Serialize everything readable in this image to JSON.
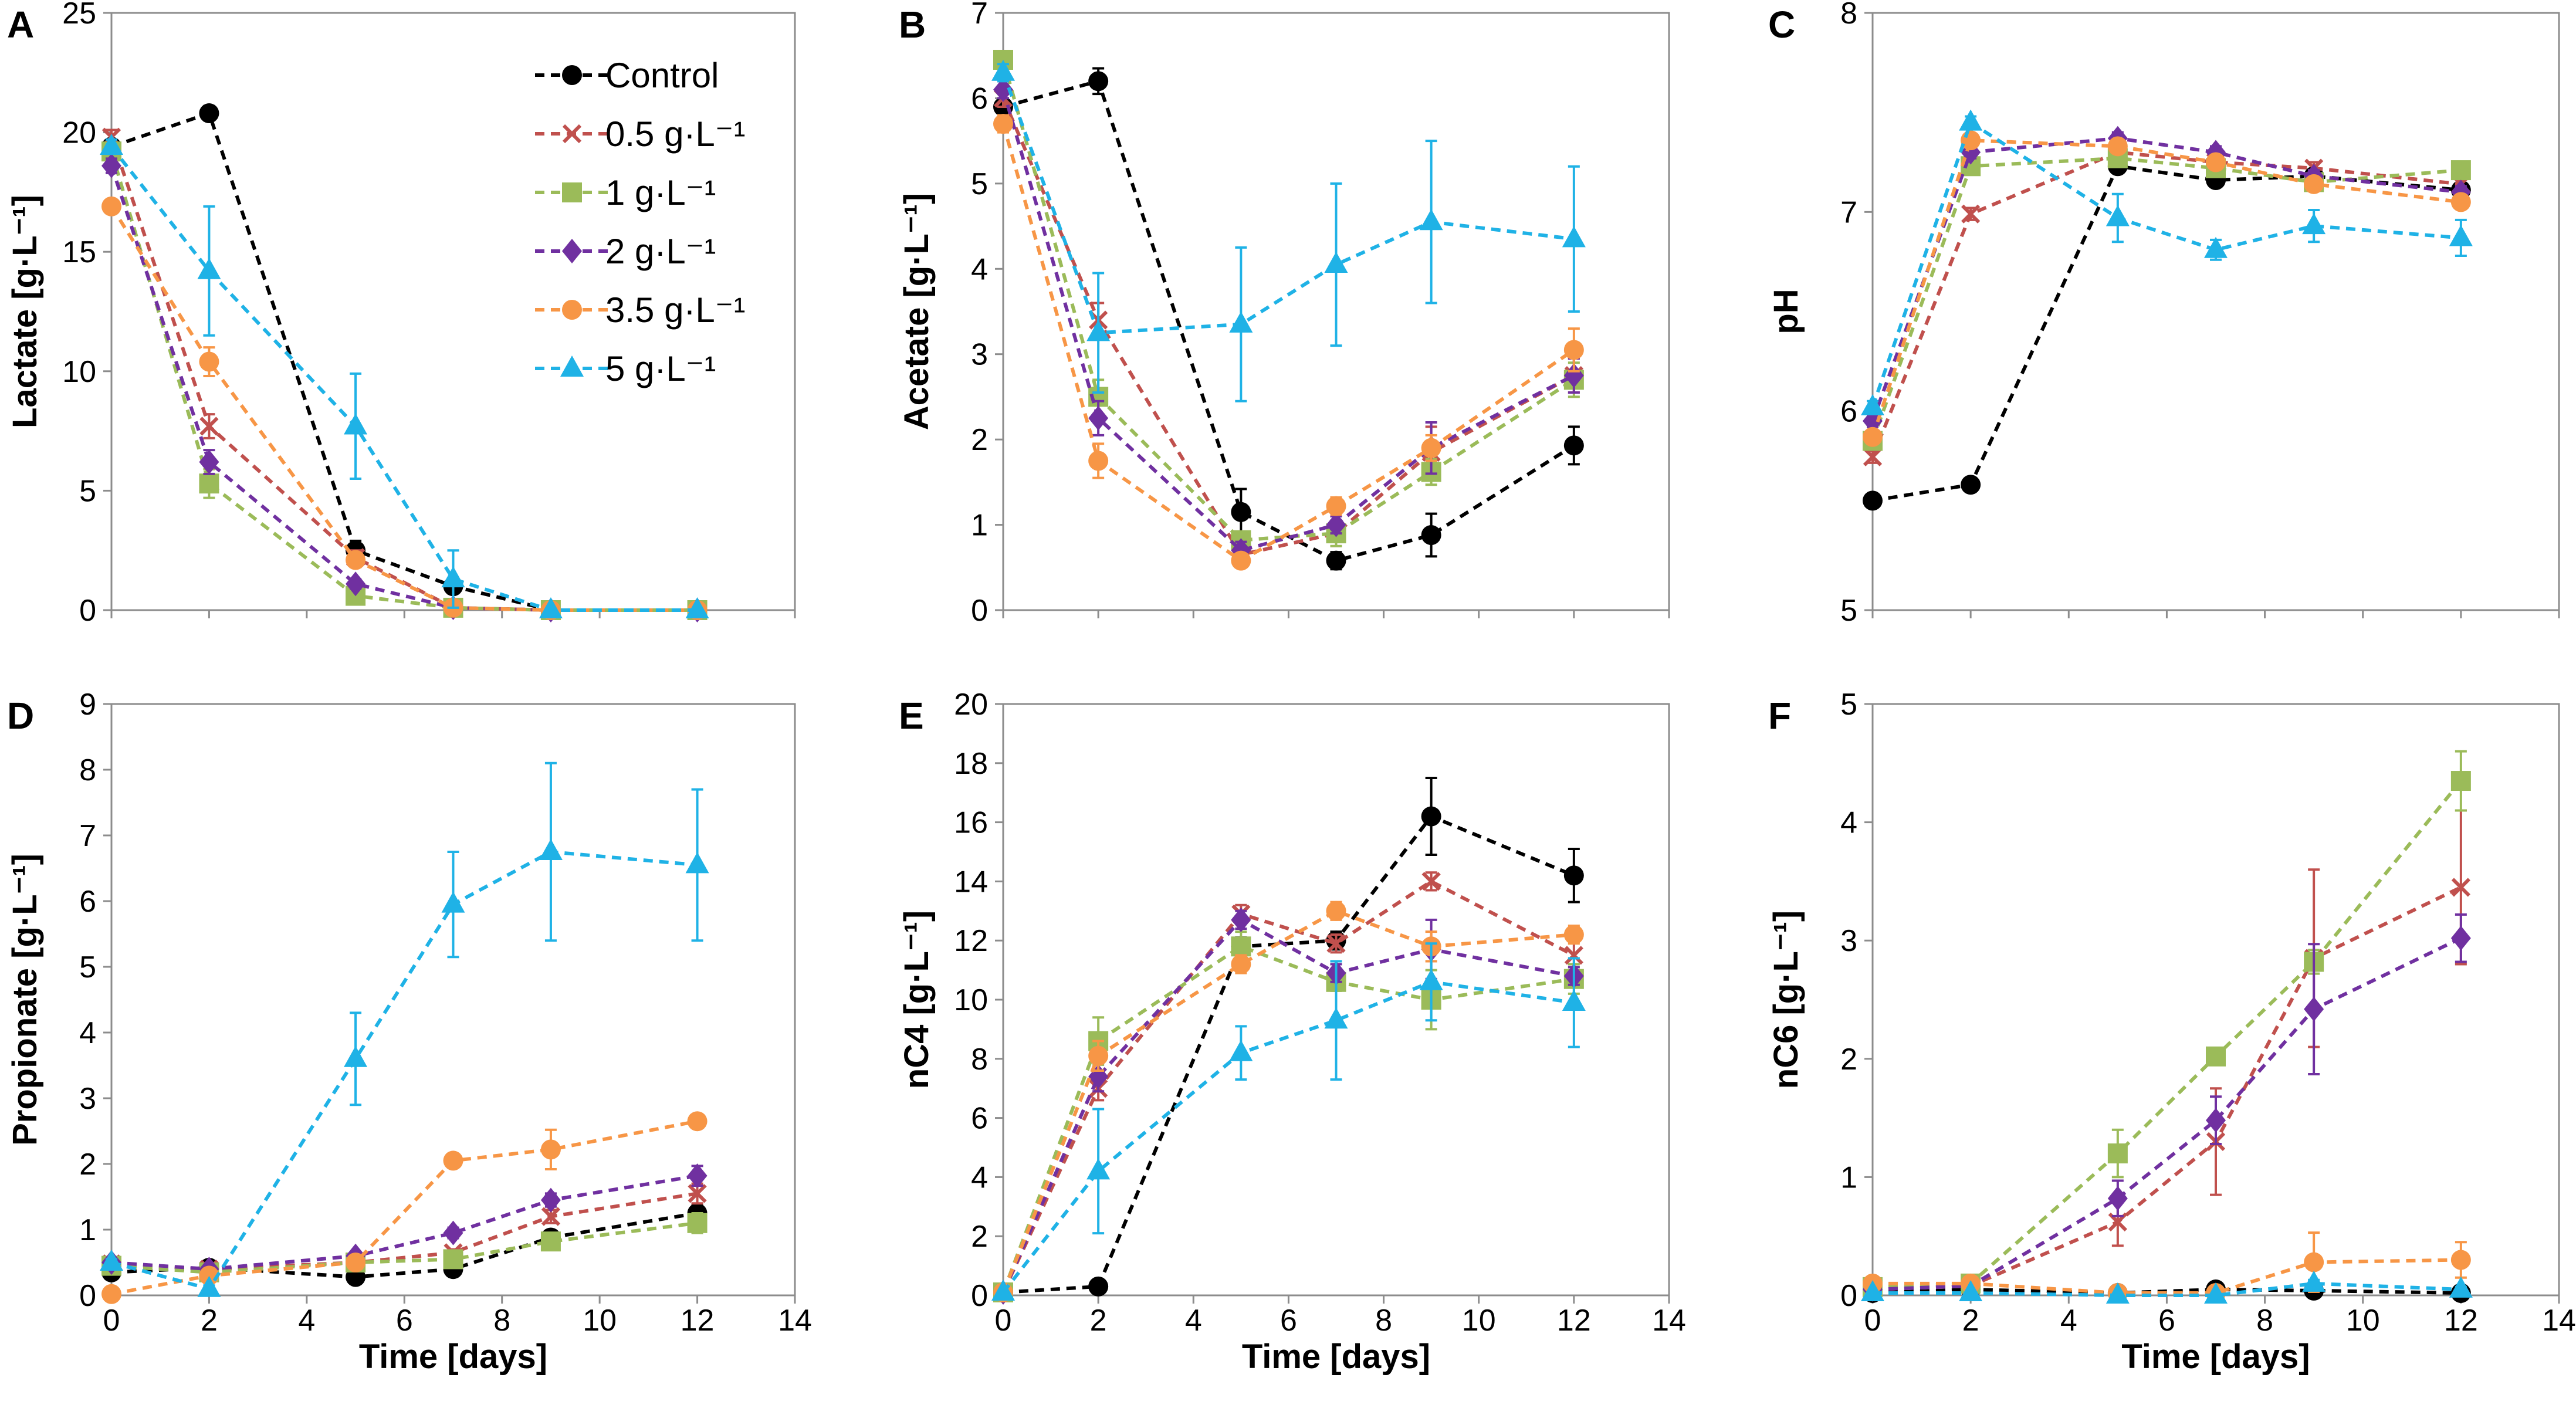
{
  "figure": {
    "x_title": "Time [days]"
  },
  "legend": [
    {
      "key": "control",
      "label": "Control",
      "color": "#000000",
      "marker": "circle"
    },
    {
      "key": "d05",
      "label": "0.5 g·L⁻¹",
      "color": "#c0504d",
      "marker": "x"
    },
    {
      "key": "d1",
      "label": "1 g·L⁻¹",
      "color": "#9bbb59",
      "marker": "square"
    },
    {
      "key": "d2",
      "label": "2 g·L⁻¹",
      "color": "#7030a0",
      "marker": "diamond"
    },
    {
      "key": "d35",
      "label": "3.5 g·L⁻¹",
      "color": "#f79646",
      "marker": "circle"
    },
    {
      "key": "d5",
      "label": "5 g·L⁻¹",
      "color": "#1fb2e6",
      "marker": "triangle"
    }
  ],
  "chart_data": [
    {
      "panel": "A",
      "type": "line",
      "ylabel": "Lactate [g·L⁻¹]",
      "xlabel": "",
      "xlim": [
        0,
        14
      ],
      "ylim": [
        0,
        25
      ],
      "xticks": [],
      "yticks": [
        0,
        5,
        10,
        15,
        20,
        25
      ],
      "x": [
        0,
        2,
        5,
        7,
        9,
        12
      ],
      "series": [
        {
          "key": "control",
          "values": [
            19.4,
            20.8,
            2.5,
            1.0,
            0.0,
            0.0
          ],
          "err": [
            0.3,
            0.3,
            0.4,
            0.3,
            0,
            0
          ]
        },
        {
          "key": "d05",
          "values": [
            19.8,
            7.7,
            2.2,
            0.1,
            0.0,
            0.0
          ],
          "err": [
            0.3,
            0.5,
            0.3,
            0,
            0,
            0
          ]
        },
        {
          "key": "d1",
          "values": [
            19.2,
            5.3,
            0.6,
            0.1,
            0.0,
            0.0
          ],
          "err": [
            0.3,
            0.6,
            0.2,
            0,
            0,
            0
          ]
        },
        {
          "key": "d2",
          "values": [
            18.6,
            6.2,
            1.1,
            0.1,
            0.0,
            0.0
          ],
          "err": [
            0.3,
            0.5,
            0.2,
            0,
            0,
            0
          ]
        },
        {
          "key": "d35",
          "values": [
            16.9,
            10.4,
            2.1,
            0.1,
            0.0,
            0.0
          ],
          "err": [
            0.3,
            0.6,
            0.3,
            0,
            0,
            0
          ]
        },
        {
          "key": "d5",
          "values": [
            19.4,
            14.2,
            7.7,
            1.3,
            0.0,
            0.0
          ],
          "err": [
            0.3,
            2.7,
            2.2,
            1.2,
            0,
            0
          ]
        }
      ]
    },
    {
      "panel": "B",
      "type": "line",
      "ylabel": "Acetate [g·L⁻¹]",
      "xlabel": "",
      "xlim": [
        0,
        14
      ],
      "ylim": [
        0,
        7
      ],
      "xticks": [],
      "yticks": [
        0,
        1,
        2,
        3,
        4,
        5,
        6,
        7
      ],
      "x": [
        0,
        2,
        5,
        7,
        9,
        12
      ],
      "series": [
        {
          "key": "control",
          "values": [
            5.9,
            6.2,
            1.15,
            0.58,
            0.88,
            1.93
          ],
          "err": [
            0.15,
            0.15,
            0.27,
            0.1,
            0.25,
            0.22
          ]
        },
        {
          "key": "d05",
          "values": [
            6.0,
            3.4,
            0.65,
            0.9,
            1.85,
            2.75
          ],
          "err": [
            0.1,
            0.2,
            0.1,
            0.15,
            0.3,
            0.2
          ]
        },
        {
          "key": "d1",
          "values": [
            6.45,
            2.5,
            0.82,
            0.9,
            1.62,
            2.7
          ],
          "err": [
            0.1,
            0.2,
            0.1,
            0.15,
            0.15,
            0.2
          ]
        },
        {
          "key": "d2",
          "values": [
            6.1,
            2.25,
            0.7,
            1.0,
            1.9,
            2.75
          ],
          "err": [
            0.1,
            0.2,
            0.1,
            0.1,
            0.3,
            0.2
          ]
        },
        {
          "key": "d35",
          "values": [
            5.7,
            1.75,
            0.58,
            1.22,
            1.9,
            3.05
          ],
          "err": [
            0.1,
            0.2,
            0.08,
            0.1,
            0.15,
            0.25
          ]
        },
        {
          "key": "d5",
          "values": [
            6.3,
            3.25,
            3.35,
            4.05,
            4.55,
            4.35
          ],
          "err": [
            0.1,
            0.7,
            0.9,
            0.95,
            0.95,
            0.85
          ]
        }
      ]
    },
    {
      "panel": "C",
      "type": "line",
      "ylabel": "pH",
      "xlabel": "",
      "xlim": [
        0,
        14
      ],
      "ylim": [
        5,
        8
      ],
      "xticks": [],
      "yticks": [
        5,
        6,
        7,
        8
      ],
      "x": [
        0,
        2,
        5,
        7,
        9,
        12
      ],
      "series": [
        {
          "key": "control",
          "values": [
            5.55,
            5.63,
            7.23,
            7.16,
            7.18,
            7.11
          ],
          "err": [
            0.02,
            0.02,
            0.03,
            0.03,
            0.03,
            0.03
          ]
        },
        {
          "key": "d05",
          "values": [
            5.77,
            6.99,
            7.3,
            7.25,
            7.22,
            7.14
          ],
          "err": [
            0.03,
            0.03,
            0.03,
            0.03,
            0.03,
            0.03
          ]
        },
        {
          "key": "d1",
          "values": [
            5.85,
            7.23,
            7.27,
            7.22,
            7.15,
            7.21
          ],
          "err": [
            0.03,
            0.03,
            0.03,
            0.03,
            0.03,
            0.03
          ]
        },
        {
          "key": "d2",
          "values": [
            5.95,
            7.3,
            7.37,
            7.3,
            7.18,
            7.1
          ],
          "err": [
            0.03,
            0.03,
            0.03,
            0.03,
            0.03,
            0.03
          ]
        },
        {
          "key": "d35",
          "values": [
            5.87,
            7.36,
            7.33,
            7.25,
            7.14,
            7.05
          ],
          "err": [
            0.03,
            0.03,
            0.03,
            0.03,
            0.03,
            0.03
          ]
        },
        {
          "key": "d5",
          "values": [
            6.02,
            7.45,
            6.97,
            6.81,
            6.93,
            6.87
          ],
          "err": [
            0.03,
            0.03,
            0.12,
            0.05,
            0.08,
            0.09
          ]
        }
      ]
    },
    {
      "panel": "D",
      "type": "line",
      "ylabel": "Propionate [g·L⁻¹]",
      "xlabel": "Time [days]",
      "xlim": [
        0,
        14
      ],
      "ylim": [
        0,
        9
      ],
      "xticks": [
        0,
        2,
        4,
        6,
        8,
        10,
        12,
        14
      ],
      "yticks": [
        0,
        1,
        2,
        3,
        4,
        5,
        6,
        7,
        8,
        9
      ],
      "x": [
        0,
        2,
        5,
        7,
        9,
        12
      ],
      "series": [
        {
          "key": "control",
          "values": [
            0.35,
            0.42,
            0.28,
            0.4,
            0.88,
            1.25
          ],
          "err": [
            0.05,
            0.05,
            0.05,
            0.05,
            0.1,
            0.12
          ]
        },
        {
          "key": "d05",
          "values": [
            0.48,
            0.4,
            0.5,
            0.65,
            1.2,
            1.55
          ],
          "err": [
            0.05,
            0.05,
            0.05,
            0.05,
            0.1,
            0.15
          ]
        },
        {
          "key": "d1",
          "values": [
            0.45,
            0.35,
            0.5,
            0.55,
            0.82,
            1.1
          ],
          "err": [
            0.05,
            0.05,
            0.05,
            0.05,
            0.1,
            0.15
          ]
        },
        {
          "key": "d2",
          "values": [
            0.5,
            0.4,
            0.6,
            0.95,
            1.45,
            1.82
          ],
          "err": [
            0.05,
            0.05,
            0.05,
            0.08,
            0.1,
            0.15
          ]
        },
        {
          "key": "d35",
          "values": [
            0.02,
            0.3,
            0.5,
            2.05,
            2.22,
            2.65
          ],
          "err": [
            0.02,
            0.05,
            0.05,
            0.08,
            0.3,
            0.1
          ]
        },
        {
          "key": "d5",
          "values": [
            0.5,
            0.1,
            3.6,
            5.95,
            6.75,
            6.55
          ],
          "err": [
            0.05,
            0.05,
            0.7,
            0.8,
            1.35,
            1.15
          ]
        }
      ]
    },
    {
      "panel": "E",
      "type": "line",
      "ylabel": "nC4 [g·L⁻¹]",
      "xlabel": "Time [days]",
      "xlim": [
        0,
        14
      ],
      "ylim": [
        0,
        20
      ],
      "xticks": [
        0,
        2,
        4,
        6,
        8,
        10,
        12,
        14
      ],
      "yticks": [
        0,
        2,
        4,
        6,
        8,
        10,
        12,
        14,
        16,
        18,
        20
      ],
      "x": [
        0,
        2,
        5,
        7,
        9,
        12
      ],
      "series": [
        {
          "key": "control",
          "values": [
            0.1,
            0.3,
            11.8,
            12.0,
            16.2,
            14.2
          ],
          "err": [
            0.05,
            0.05,
            0.3,
            0.3,
            1.3,
            0.9
          ]
        },
        {
          "key": "d05",
          "values": [
            0.1,
            7.0,
            12.9,
            11.9,
            14.0,
            11.5
          ],
          "err": [
            0.05,
            0.4,
            0.3,
            0.3,
            0.3,
            0.5
          ]
        },
        {
          "key": "d1",
          "values": [
            0.1,
            8.6,
            11.8,
            10.6,
            10.0,
            10.7
          ],
          "err": [
            0.05,
            0.8,
            0.5,
            0.3,
            1.0,
            0.5
          ]
        },
        {
          "key": "d2",
          "values": [
            0.1,
            7.4,
            12.7,
            10.9,
            11.7,
            10.8
          ],
          "err": [
            0.05,
            0.5,
            0.3,
            0.3,
            1.0,
            0.3
          ]
        },
        {
          "key": "d35",
          "values": [
            0.1,
            8.1,
            11.2,
            13.0,
            11.8,
            12.2
          ],
          "err": [
            0.05,
            0.5,
            0.3,
            0.3,
            0.5,
            0.3
          ]
        },
        {
          "key": "d5",
          "values": [
            0.1,
            4.2,
            8.2,
            9.3,
            10.6,
            9.9
          ],
          "err": [
            0.05,
            2.1,
            0.9,
            2.0,
            1.3,
            1.5
          ]
        }
      ]
    },
    {
      "panel": "F",
      "type": "line",
      "ylabel": "nC6 [g·L⁻¹]",
      "xlabel": "Time [days]",
      "xlim": [
        0,
        14
      ],
      "ylim": [
        0,
        5
      ],
      "xticks": [
        0,
        2,
        4,
        6,
        8,
        10,
        12,
        14
      ],
      "yticks": [
        0,
        1,
        2,
        3,
        4,
        5
      ],
      "x": [
        0,
        2,
        5,
        7,
        9,
        12
      ],
      "series": [
        {
          "key": "control",
          "values": [
            0.02,
            0.05,
            0.02,
            0.05,
            0.04,
            0.02
          ],
          "err": [
            0.01,
            0.01,
            0.01,
            0.01,
            0.01,
            0.01
          ]
        },
        {
          "key": "d05",
          "values": [
            0.05,
            0.08,
            0.62,
            1.3,
            2.85,
            3.45
          ],
          "err": [
            0.02,
            0.03,
            0.2,
            0.45,
            0.75,
            0.65
          ]
        },
        {
          "key": "d1",
          "values": [
            0.07,
            0.1,
            1.2,
            2.02,
            2.82,
            4.35
          ],
          "err": [
            0.02,
            0.03,
            0.2,
            0.05,
            0.1,
            0.25
          ]
        },
        {
          "key": "d2",
          "values": [
            0.05,
            0.08,
            0.82,
            1.48,
            2.42,
            3.02
          ],
          "err": [
            0.02,
            0.03,
            0.15,
            0.2,
            0.55,
            0.2
          ]
        },
        {
          "key": "d35",
          "values": [
            0.1,
            0.1,
            0.02,
            0.02,
            0.28,
            0.3
          ],
          "err": [
            0.02,
            0.02,
            0.01,
            0.01,
            0.25,
            0.15
          ]
        },
        {
          "key": "d5",
          "values": [
            0.02,
            0.02,
            0.0,
            0.0,
            0.1,
            0.05
          ],
          "err": [
            0.01,
            0.01,
            0.01,
            0.01,
            0.03,
            0.02
          ]
        }
      ]
    }
  ]
}
